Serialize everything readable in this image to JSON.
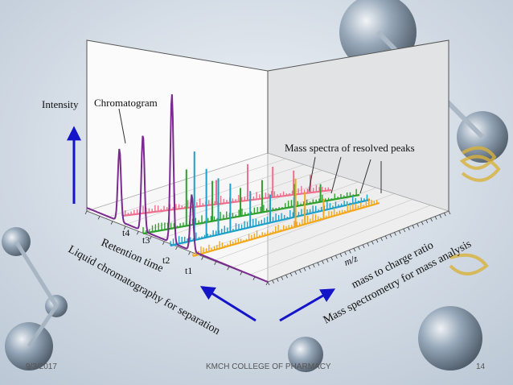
{
  "slide": {
    "footer_date": "9/3/2017",
    "footer_college": "KMCH COLLEGE OF PHARMACY",
    "footer_page": "14"
  },
  "diagram": {
    "intensity_label": "Intensity",
    "chromatogram_label": "Chromatogram",
    "mass_spectra_label": "Mass spectra of resolved peaks",
    "retention_time_label": "Retention time",
    "lc_label": "Liquid chromatography for separation",
    "mz_label": "m/z",
    "mass_to_charge_label": "mass to charge ratio",
    "ms_label": "Mass spectrometry for mass analysis",
    "time_ticks": [
      "t4",
      "t3",
      "t2",
      "t1"
    ],
    "colors": {
      "chromatogram": "#7b2a8f",
      "spectrum_t4": "#ee6f8e",
      "spectrum_t3": "#2ea02e",
      "spectrum_t2": "#1ea0c8",
      "spectrum_t1": "#f2a81d",
      "arrow": "#1414c8"
    }
  }
}
